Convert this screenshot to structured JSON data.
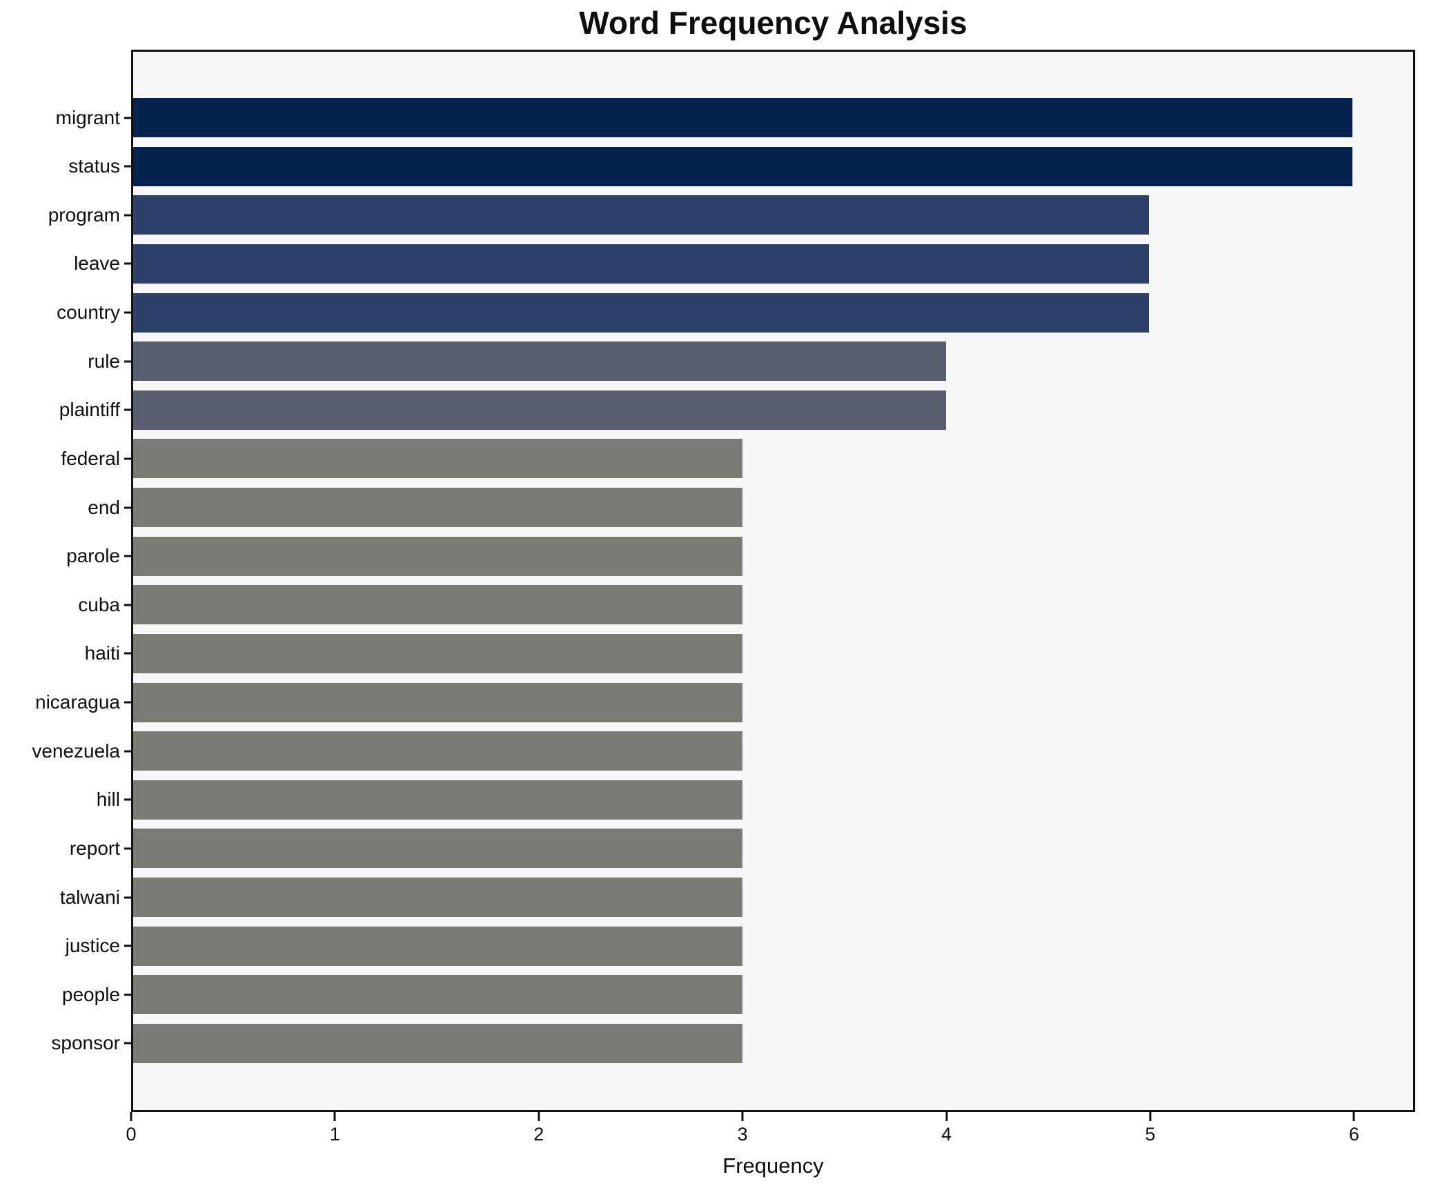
{
  "chart_data": {
    "type": "bar",
    "orientation": "horizontal",
    "title": "Word Frequency Analysis",
    "xlabel": "Frequency",
    "ylabel": "",
    "xlim": [
      0,
      6.3
    ],
    "xticks": [
      0,
      1,
      2,
      3,
      4,
      5,
      6
    ],
    "grid": false,
    "legend": null,
    "plot_background": "#f8f7f7",
    "figure_background": "#ffffff",
    "axis_color": "#101010",
    "categories": [
      "migrant",
      "status",
      "program",
      "leave",
      "country",
      "rule",
      "plaintiff",
      "federal",
      "end",
      "parole",
      "cuba",
      "haiti",
      "nicaragua",
      "venezuela",
      "hill",
      "report",
      "talwani",
      "justice",
      "people",
      "sponsor"
    ],
    "values": [
      6,
      6,
      5,
      5,
      5,
      4,
      4,
      3,
      3,
      3,
      3,
      3,
      3,
      3,
      3,
      3,
      3,
      3,
      3,
      3
    ],
    "bars": [
      {
        "label": "migrant",
        "value": 6,
        "color": "#05234e"
      },
      {
        "label": "status",
        "value": 6,
        "color": "#05234e"
      },
      {
        "label": "program",
        "value": 5,
        "color": "#2d3f6b"
      },
      {
        "label": "leave",
        "value": 5,
        "color": "#2d3f6b"
      },
      {
        "label": "country",
        "value": 5,
        "color": "#2d3f6b"
      },
      {
        "label": "rule",
        "value": 4,
        "color": "#575d6c"
      },
      {
        "label": "plaintiff",
        "value": 4,
        "color": "#575d6c"
      },
      {
        "label": "federal",
        "value": 3,
        "color": "#7b7b76"
      },
      {
        "label": "end",
        "value": 3,
        "color": "#7b7b76"
      },
      {
        "label": "parole",
        "value": 3,
        "color": "#7b7b76"
      },
      {
        "label": "cuba",
        "value": 3,
        "color": "#7b7b76"
      },
      {
        "label": "haiti",
        "value": 3,
        "color": "#7b7b76"
      },
      {
        "label": "nicaragua",
        "value": 3,
        "color": "#7b7b76"
      },
      {
        "label": "venezuela",
        "value": 3,
        "color": "#7b7b76"
      },
      {
        "label": "hill",
        "value": 3,
        "color": "#7b7b76"
      },
      {
        "label": "report",
        "value": 3,
        "color": "#7b7b76"
      },
      {
        "label": "talwani",
        "value": 3,
        "color": "#7b7b76"
      },
      {
        "label": "justice",
        "value": 3,
        "color": "#7b7b76"
      },
      {
        "label": "people",
        "value": 3,
        "color": "#7b7b76"
      },
      {
        "label": "sponsor",
        "value": 3,
        "color": "#7b7b76"
      }
    ]
  }
}
